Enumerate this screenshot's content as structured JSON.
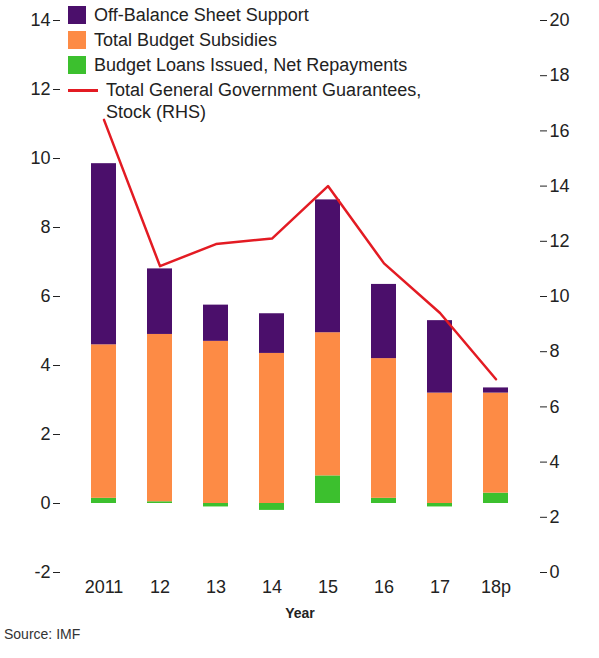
{
  "chart_data": {
    "type": "bar",
    "stacked": true,
    "categories": [
      "2011",
      "12",
      "13",
      "14",
      "15",
      "16",
      "17",
      "18p"
    ],
    "xlabel": "Year",
    "source": "Source: IMF",
    "legend": "top-left",
    "grid": false,
    "ylim": [
      -2,
      14
    ],
    "yticks": [
      -2,
      0,
      2,
      4,
      6,
      8,
      10,
      12,
      14
    ],
    "y2lim": [
      0,
      20
    ],
    "y2ticks": [
      0,
      2,
      4,
      6,
      8,
      10,
      12,
      14,
      16,
      18,
      20
    ],
    "series": [
      {
        "name": "Off-Balance Sheet Support",
        "type": "bar",
        "color": "#4b0f6b",
        "values": [
          5.25,
          1.9,
          1.05,
          1.15,
          3.85,
          2.15,
          2.1,
          0.15
        ]
      },
      {
        "name": "Total Budget Subsidies",
        "type": "bar",
        "color": "#fd8b45",
        "values": [
          4.45,
          4.85,
          4.7,
          4.35,
          4.15,
          4.05,
          3.2,
          2.9
        ]
      },
      {
        "name": "Budget Loans Issued, Net Repayments",
        "type": "bar",
        "color": "#3cc02e",
        "values": [
          0.15,
          0.05,
          -0.1,
          -0.2,
          0.8,
          0.15,
          -0.1,
          0.3
        ]
      },
      {
        "name": "Total General Government Guarantees, Stock (RHS)",
        "type": "line",
        "axis": "y2",
        "color": "#e31b23",
        "values": [
          16.4,
          11.1,
          11.9,
          12.1,
          14.0,
          11.2,
          9.4,
          7.0
        ]
      }
    ]
  }
}
